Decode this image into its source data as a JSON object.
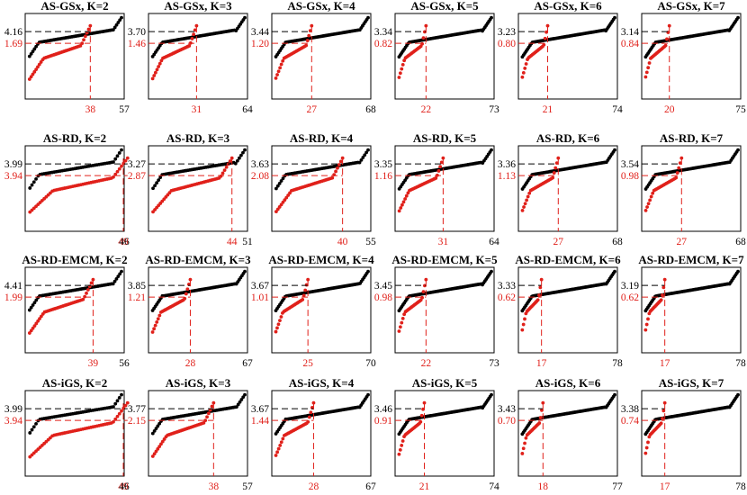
{
  "chart_data": [
    {
      "type": "scatter",
      "title": "AS-GSx, K=2",
      "x_black_end": 57,
      "x_red_end": 38,
      "y_black": 4.16,
      "y_red": 1.69
    },
    {
      "type": "scatter",
      "title": "AS-GSx, K=3",
      "x_black_end": 64,
      "x_red_end": 31,
      "y_black": 3.7,
      "y_red": 1.46
    },
    {
      "type": "scatter",
      "title": "AS-GSx, K=4",
      "x_black_end": 68,
      "x_red_end": 27,
      "y_black": 3.44,
      "y_red": 1.2
    },
    {
      "type": "scatter",
      "title": "AS-GSx, K=5",
      "x_black_end": 73,
      "x_red_end": 22,
      "y_black": 3.34,
      "y_red": 0.82
    },
    {
      "type": "scatter",
      "title": "AS-GSx, K=6",
      "x_black_end": 74,
      "x_red_end": 21,
      "y_black": 3.23,
      "y_red": 0.8
    },
    {
      "type": "scatter",
      "title": "AS-GSx, K=7",
      "x_black_end": 75,
      "x_red_end": 20,
      "y_black": 3.14,
      "y_red": 0.84
    },
    {
      "type": "scatter",
      "title": "AS-RD, K=2",
      "x_black_end": 46,
      "x_red_end": 49,
      "y_black": 3.99,
      "y_red": 3.94
    },
    {
      "type": "scatter",
      "title": "AS-RD, K=3",
      "x_black_end": 51,
      "x_red_end": 44,
      "y_black": 3.27,
      "y_red": 2.87
    },
    {
      "type": "scatter",
      "title": "AS-RD, K=4",
      "x_black_end": 55,
      "x_red_end": 40,
      "y_black": 3.63,
      "y_red": 2.08
    },
    {
      "type": "scatter",
      "title": "AS-RD, K=5",
      "x_black_end": 64,
      "x_red_end": 31,
      "y_black": 3.35,
      "y_red": 1.16
    },
    {
      "type": "scatter",
      "title": "AS-RD, K=6",
      "x_black_end": 68,
      "x_red_end": 27,
      "y_black": 3.36,
      "y_red": 1.13
    },
    {
      "type": "scatter",
      "title": "AS-RD, K=7",
      "x_black_end": 68,
      "x_red_end": 27,
      "y_black": 3.54,
      "y_red": 0.98
    },
    {
      "type": "scatter",
      "title": "AS-RD-EMCM, K=2",
      "x_black_end": 56,
      "x_red_end": 39,
      "y_black": 4.41,
      "y_red": 1.99
    },
    {
      "type": "scatter",
      "title": "AS-RD-EMCM, K=3",
      "x_black_end": 67,
      "x_red_end": 28,
      "y_black": 3.85,
      "y_red": 1.21
    },
    {
      "type": "scatter",
      "title": "AS-RD-EMCM, K=4",
      "x_black_end": 70,
      "x_red_end": 25,
      "y_black": 3.67,
      "y_red": 1.01
    },
    {
      "type": "scatter",
      "title": "AS-RD-EMCM, K=5",
      "x_black_end": 73,
      "x_red_end": 22,
      "y_black": 3.45,
      "y_red": 0.98
    },
    {
      "type": "scatter",
      "title": "AS-RD-EMCM, K=6",
      "x_black_end": 78,
      "x_red_end": 17,
      "y_black": 3.33,
      "y_red": 0.62
    },
    {
      "type": "scatter",
      "title": "AS-RD-EMCM, K=7",
      "x_black_end": 78,
      "x_red_end": 17,
      "y_black": 3.19,
      "y_red": 0.62
    },
    {
      "type": "scatter",
      "title": "AS-iGS, K=2",
      "x_black_end": 46,
      "x_red_end": 49,
      "y_black": 3.99,
      "y_red": 3.94
    },
    {
      "type": "scatter",
      "title": "AS-iGS, K=3",
      "x_black_end": 57,
      "x_red_end": 38,
      "y_black": 3.77,
      "y_red": 2.15
    },
    {
      "type": "scatter",
      "title": "AS-iGS, K=4",
      "x_black_end": 67,
      "x_red_end": 28,
      "y_black": 3.67,
      "y_red": 1.44
    },
    {
      "type": "scatter",
      "title": "AS-iGS, K=5",
      "x_black_end": 74,
      "x_red_end": 21,
      "y_black": 3.46,
      "y_red": 0.91
    },
    {
      "type": "scatter",
      "title": "AS-iGS, K=6",
      "x_black_end": 77,
      "x_red_end": 18,
      "y_black": 3.43,
      "y_red": 0.7
    },
    {
      "type": "scatter",
      "title": "AS-iGS, K=7",
      "x_black_end": 78,
      "x_red_end": 17,
      "y_black": 3.38,
      "y_red": 0.74
    }
  ],
  "colors": {
    "black_series": "#000000",
    "red_series": "#e0201a",
    "axis": "#000000"
  }
}
